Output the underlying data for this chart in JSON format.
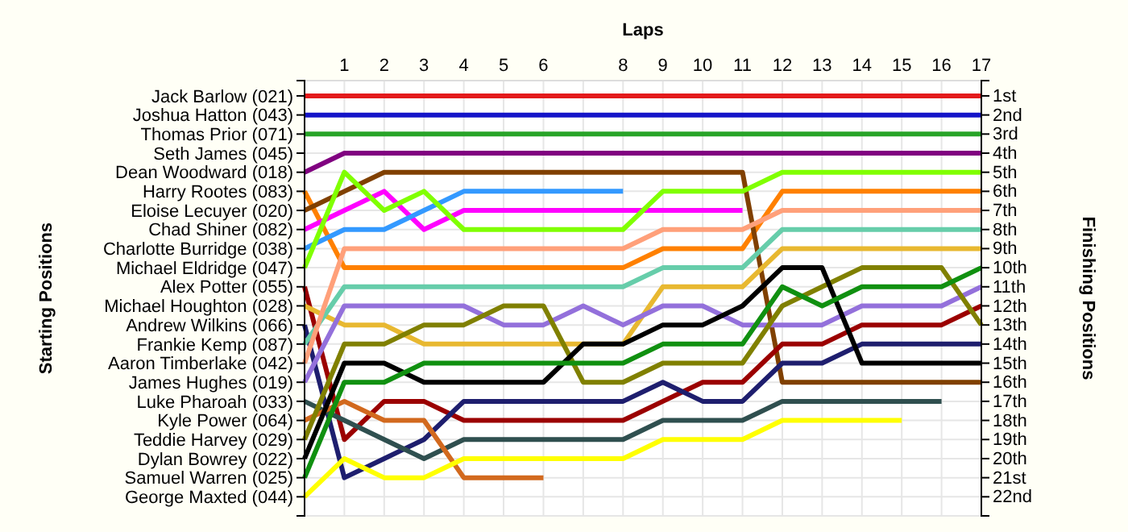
{
  "chart_data": {
    "type": "line",
    "xlabel": "Laps",
    "ylabel": "Finishing Positions",
    "annotations": [
      "Starting Positions",
      "Jack Barlow (021)",
      "Joshua Hatton (043)",
      "Thomas Prior (071)",
      "Seth James (045)",
      "Dean Woodward (018)",
      "Harry Rootes (083)",
      "Eloise Lecuyer (020)",
      "Chad Shiner (082)",
      "Charlotte Burridge (038)",
      "Michael Eldridge (047)",
      "Alex Potter (055)",
      "Michael Houghton (028)",
      "Andrew Wilkins (066)",
      "Frankie Kemp (087)",
      "Aaron Timberlake (042)",
      "James Hughes (019)",
      "Luke Pharoah (033)",
      "Kyle Power (064)",
      "Teddie Harvey (029)",
      "Dylan Bowrey (022)",
      "Samuel Warren (025)",
      "George Maxted (044)"
    ],
    "x": [
      0,
      1,
      2,
      3,
      4,
      5,
      6,
      7,
      8,
      9,
      10,
      11,
      12,
      13,
      14,
      15,
      16,
      17
    ],
    "xlim": [
      0,
      17
    ],
    "xticks": [
      {
        "value": 0,
        "label": null
      },
      1,
      2,
      3,
      4,
      5,
      6,
      {
        "value": 7,
        "label": null
      },
      8,
      9,
      10,
      11,
      12,
      13,
      14,
      15,
      16,
      17
    ],
    "ylim": [
      23,
      0.2
    ],
    "yticks": [
      {
        "value": 1,
        "label": "1st"
      },
      {
        "value": 2,
        "label": "2nd"
      },
      {
        "value": 3,
        "label": "3rd"
      },
      {
        "value": 4,
        "label": "4th"
      },
      {
        "value": 5,
        "label": "5th"
      },
      {
        "value": 6,
        "label": "6th"
      },
      {
        "value": 7,
        "label": "7th"
      },
      {
        "value": 8,
        "label": "8th"
      },
      {
        "value": 9,
        "label": "9th"
      },
      {
        "value": 10,
        "label": "10th"
      },
      {
        "value": 11,
        "label": "11th"
      },
      {
        "value": 12,
        "label": "12th"
      },
      {
        "value": 13,
        "label": "13th"
      },
      {
        "value": 14,
        "label": "14th"
      },
      {
        "value": 15,
        "label": "15th"
      },
      {
        "value": 16,
        "label": "16th"
      },
      {
        "value": 17,
        "label": "17th"
      },
      {
        "value": 18,
        "label": "18th"
      },
      {
        "value": 19,
        "label": "19th"
      },
      {
        "value": 20,
        "label": "20th"
      },
      {
        "value": 21,
        "label": "21st"
      },
      {
        "value": 22,
        "label": "22nd"
      },
      {
        "value": 23,
        "label": null
      }
    ],
    "grid": true,
    "marker": "none",
    "line_style": "solid",
    "series": [
      {
        "color": "#e31a1c",
        "values": [
          1,
          1,
          1,
          1,
          1,
          1,
          1,
          1,
          1,
          1,
          1,
          1,
          1,
          1,
          1,
          1,
          1,
          1
        ]
      },
      {
        "color": "#1414c8",
        "values": [
          2,
          2,
          2,
          2,
          2,
          2,
          2,
          2,
          2,
          2,
          2,
          2,
          2,
          2,
          2,
          2,
          2,
          2
        ]
      },
      {
        "color": "#28a428",
        "values": [
          3,
          3,
          3,
          3,
          3,
          3,
          3,
          3,
          3,
          3,
          3,
          3,
          3,
          3,
          3,
          3,
          3,
          3
        ]
      },
      {
        "color": "#800080",
        "values": [
          5,
          4,
          4,
          4,
          4,
          4,
          4,
          4,
          4,
          4,
          4,
          4,
          4,
          4,
          4,
          4,
          4,
          4
        ]
      },
      {
        "color": "#ff8000",
        "values": [
          6,
          10,
          10,
          10,
          10,
          10,
          10,
          10,
          10,
          9,
          9,
          9,
          6,
          6,
          6,
          6,
          6,
          6
        ]
      },
      {
        "color": "#804000",
        "values": [
          7,
          6,
          5,
          5,
          5,
          5,
          5,
          5,
          5,
          5,
          5,
          5,
          16,
          16,
          16,
          16,
          16,
          16
        ]
      },
      {
        "color": "#ff00ff",
        "values": [
          8,
          7,
          6,
          8,
          7,
          7,
          7,
          7,
          7,
          7,
          7,
          7,
          null,
          null,
          null,
          null,
          null,
          null
        ]
      },
      {
        "color": "#3399ff",
        "values": [
          9,
          8,
          8,
          7,
          6,
          6,
          6,
          6,
          6,
          null,
          null,
          null,
          null,
          null,
          null,
          null,
          null,
          null
        ]
      },
      {
        "color": "#80ff00",
        "values": [
          10,
          5,
          7,
          6,
          8,
          8,
          8,
          8,
          8,
          6,
          6,
          6,
          5,
          5,
          5,
          5,
          5,
          5
        ]
      },
      {
        "color": "#9b0000",
        "values": [
          11,
          19,
          17,
          17,
          18,
          18,
          18,
          18,
          18,
          17,
          16,
          16,
          14,
          14,
          13,
          13,
          13,
          12
        ]
      },
      {
        "color": "#e8b830",
        "values": [
          12,
          13,
          13,
          14,
          14,
          14,
          14,
          14,
          14,
          11,
          11,
          11,
          9,
          9,
          9,
          9,
          9,
          9
        ]
      },
      {
        "color": "#1e1e6e",
        "values": [
          13,
          21,
          20,
          19,
          17,
          17,
          17,
          17,
          17,
          16,
          17,
          17,
          15,
          15,
          14,
          14,
          14,
          14
        ]
      },
      {
        "color": "#66cdaa",
        "values": [
          14,
          11,
          11,
          11,
          11,
          11,
          11,
          11,
          11,
          10,
          10,
          10,
          8,
          8,
          8,
          8,
          8,
          8
        ]
      },
      {
        "color": "#ffa07a",
        "values": [
          15,
          9,
          9,
          9,
          9,
          9,
          9,
          9,
          9,
          8,
          8,
          8,
          7,
          7,
          7,
          7,
          7,
          7
        ]
      },
      {
        "color": "#9370db",
        "values": [
          16,
          12,
          12,
          12,
          12,
          13,
          13,
          12,
          13,
          12,
          12,
          13,
          13,
          13,
          12,
          12,
          12,
          11
        ]
      },
      {
        "color": "#2f4f4f",
        "values": [
          17,
          18,
          19,
          20,
          19,
          19,
          19,
          19,
          19,
          18,
          18,
          18,
          17,
          17,
          17,
          17,
          17,
          null
        ]
      },
      {
        "color": "#d2691e",
        "values": [
          18,
          17,
          18,
          18,
          21,
          21,
          21,
          null,
          null,
          null,
          null,
          null,
          null,
          null,
          null,
          null,
          null,
          null
        ]
      },
      {
        "color": "#808000",
        "values": [
          19,
          14,
          14,
          13,
          13,
          12,
          12,
          16,
          16,
          15,
          15,
          15,
          12,
          11,
          10,
          10,
          10,
          13
        ]
      },
      {
        "color": "#000000",
        "values": [
          20,
          15,
          15,
          16,
          16,
          16,
          16,
          14,
          14,
          13,
          13,
          12,
          10,
          10,
          15,
          15,
          15,
          15
        ]
      },
      {
        "color": "#109010",
        "values": [
          21,
          16,
          16,
          15,
          15,
          15,
          15,
          15,
          15,
          14,
          14,
          14,
          11,
          12,
          11,
          11,
          11,
          10
        ]
      },
      {
        "color": "#ffff00",
        "values": [
          22,
          20,
          21,
          21,
          20,
          20,
          20,
          20,
          20,
          19,
          19,
          19,
          18,
          18,
          18,
          18,
          null,
          null
        ]
      }
    ]
  }
}
